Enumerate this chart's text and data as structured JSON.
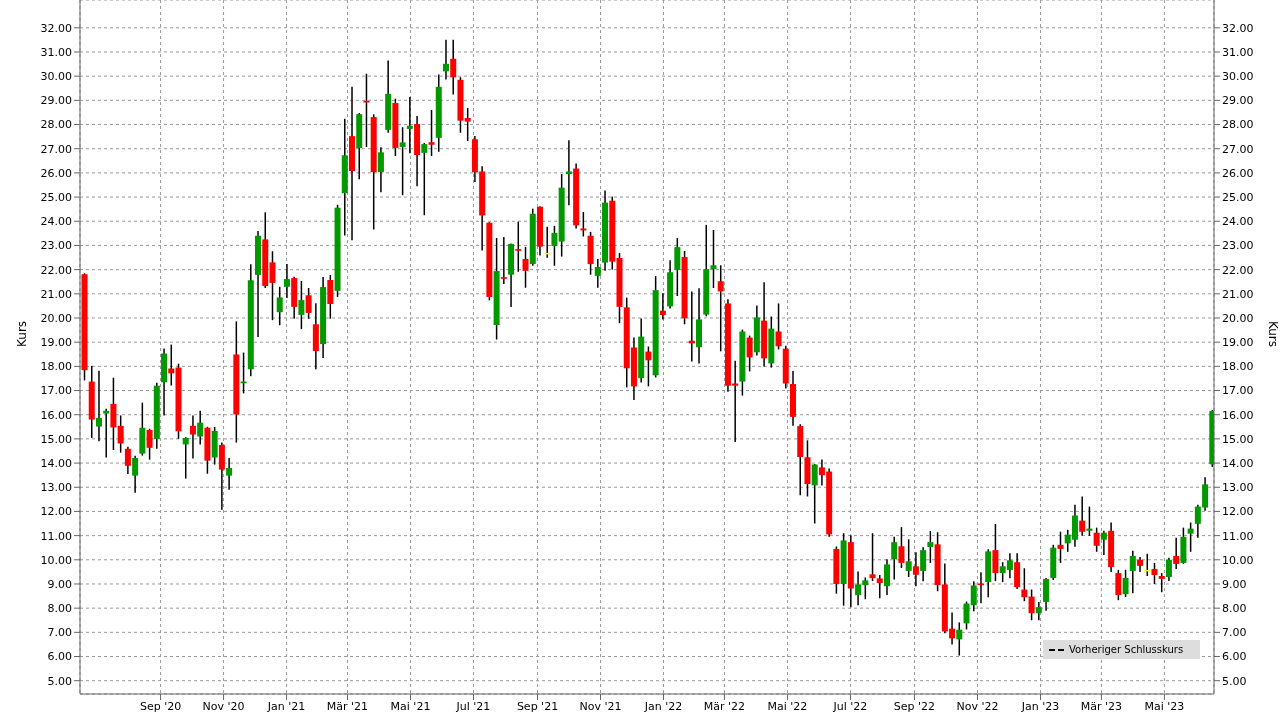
{
  "chart_data": {
    "type": "candlestick",
    "ylabel": "Kurs",
    "y2label": "Kurs",
    "annotations": [
      "Vorheriger Schlusskurs"
    ],
    "grid": true,
    "xlim": [
      "2020-06-15",
      "2023-06-18"
    ],
    "xticks": [
      {
        "value": "2020-09-01",
        "label": "Sep '20"
      },
      {
        "value": "2020-11-01",
        "label": "Nov '20"
      },
      {
        "value": "2021-01-01",
        "label": "Jan '21"
      },
      {
        "value": "2021-03-01",
        "label": "Mär '21"
      },
      {
        "value": "2021-05-01",
        "label": "Mai '21"
      },
      {
        "value": "2021-07-01",
        "label": "Jul '21"
      },
      {
        "value": "2021-09-01",
        "label": "Sep '21"
      },
      {
        "value": "2021-11-01",
        "label": "Nov '21"
      },
      {
        "value": "2022-01-01",
        "label": "Jan '22"
      },
      {
        "value": "2022-03-01",
        "label": "Mär '22"
      },
      {
        "value": "2022-05-01",
        "label": "Mai '22"
      },
      {
        "value": "2022-07-01",
        "label": "Jul '22"
      },
      {
        "value": "2022-09-01",
        "label": "Sep '22"
      },
      {
        "value": "2022-11-01",
        "label": "Nov '22"
      },
      {
        "value": "2023-01-01",
        "label": "Jan '23"
      },
      {
        "value": "2023-03-01",
        "label": "Mär '23"
      },
      {
        "value": "2023-05-01",
        "label": "Mai '23"
      }
    ],
    "ylim": [
      4.45,
      33.15
    ],
    "yticks": [
      {
        "value": 5,
        "label": "5.00"
      },
      {
        "value": 6,
        "label": "6.00"
      },
      {
        "value": 7,
        "label": "7.00"
      },
      {
        "value": 8,
        "label": "8.00"
      },
      {
        "value": 9,
        "label": "9.00"
      },
      {
        "value": 10,
        "label": "10.00"
      },
      {
        "value": 11,
        "label": "11.00"
      },
      {
        "value": 12,
        "label": "12.00"
      },
      {
        "value": 13,
        "label": "13.00"
      },
      {
        "value": 14,
        "label": "14.00"
      },
      {
        "value": 15,
        "label": "15.00"
      },
      {
        "value": 16,
        "label": "16.00"
      },
      {
        "value": 17,
        "label": "17.00"
      },
      {
        "value": 18,
        "label": "18.00"
      },
      {
        "value": 19,
        "label": "19.00"
      },
      {
        "value": 20,
        "label": "20.00"
      },
      {
        "value": 21,
        "label": "21.00"
      },
      {
        "value": 22,
        "label": "22.00"
      },
      {
        "value": 23,
        "label": "23.00"
      },
      {
        "value": 24,
        "label": "24.00"
      },
      {
        "value": 25,
        "label": "25.00"
      },
      {
        "value": 26,
        "label": "26.00"
      },
      {
        "value": 27,
        "label": "27.00"
      },
      {
        "value": 28,
        "label": "28.00"
      },
      {
        "value": 29,
        "label": "29.00"
      },
      {
        "value": 30,
        "label": "30.00"
      },
      {
        "value": 31,
        "label": "31.00"
      },
      {
        "value": 32,
        "label": "32.00"
      }
    ],
    "y2lim": [
      4.45,
      33.15
    ],
    "y2ticks": [
      {
        "value": 5,
        "label": "5.00"
      },
      {
        "value": 6,
        "label": "6.00"
      },
      {
        "value": 7,
        "label": "7.00"
      },
      {
        "value": 8,
        "label": "8.00"
      },
      {
        "value": 9,
        "label": "9.00"
      },
      {
        "value": 10,
        "label": "10.00"
      },
      {
        "value": 11,
        "label": "11.00"
      },
      {
        "value": 12,
        "label": "12.00"
      },
      {
        "value": 13,
        "label": "13.00"
      },
      {
        "value": 14,
        "label": "14.00"
      },
      {
        "value": 15,
        "label": "15.00"
      },
      {
        "value": 16,
        "label": "16.00"
      },
      {
        "value": 17,
        "label": "17.00"
      },
      {
        "value": 18,
        "label": "18.00"
      },
      {
        "value": 19,
        "label": "19.00"
      },
      {
        "value": 20,
        "label": "20.00"
      },
      {
        "value": 21,
        "label": "21.00"
      },
      {
        "value": 22,
        "label": "22.00"
      },
      {
        "value": 23,
        "label": "23.00"
      },
      {
        "value": 24,
        "label": "24.00"
      },
      {
        "value": 25,
        "label": "25.00"
      },
      {
        "value": 26,
        "label": "26.00"
      },
      {
        "value": 27,
        "label": "27.00"
      },
      {
        "value": 28,
        "label": "28.00"
      },
      {
        "value": 29,
        "label": "29.00"
      },
      {
        "value": 30,
        "label": "30.00"
      },
      {
        "value": 31,
        "label": "31.00"
      },
      {
        "value": 32,
        "label": "32.00"
      }
    ],
    "x": [
      "2020-06-19",
      "2020-06-26",
      "2020-07-03",
      "2020-07-10",
      "2020-07-17",
      "2020-07-24",
      "2020-07-31",
      "2020-08-07",
      "2020-08-14",
      "2020-08-21",
      "2020-08-28",
      "2020-09-04",
      "2020-09-11",
      "2020-09-18",
      "2020-09-25",
      "2020-10-02",
      "2020-10-09",
      "2020-10-16",
      "2020-10-23",
      "2020-10-30",
      "2020-11-06",
      "2020-11-13",
      "2020-11-20",
      "2020-11-27",
      "2020-12-04",
      "2020-12-11",
      "2020-12-18",
      "2020-12-25",
      "2021-01-01",
      "2021-01-08",
      "2021-01-15",
      "2021-01-22",
      "2021-01-29",
      "2021-02-05",
      "2021-02-12",
      "2021-02-19",
      "2021-02-26",
      "2021-03-05",
      "2021-03-12",
      "2021-03-19",
      "2021-03-26",
      "2021-04-02",
      "2021-04-09",
      "2021-04-16",
      "2021-04-23",
      "2021-04-30",
      "2021-05-07",
      "2021-05-14",
      "2021-05-21",
      "2021-05-28",
      "2021-06-04",
      "2021-06-11",
      "2021-06-18",
      "2021-06-25",
      "2021-07-02",
      "2021-07-09",
      "2021-07-16",
      "2021-07-23",
      "2021-07-30",
      "2021-08-06",
      "2021-08-13",
      "2021-08-20",
      "2021-08-27",
      "2021-09-03",
      "2021-09-10",
      "2021-09-17",
      "2021-09-24",
      "2021-10-01",
      "2021-10-08",
      "2021-10-15",
      "2021-10-22",
      "2021-10-29",
      "2021-11-05",
      "2021-11-12",
      "2021-11-19",
      "2021-11-26",
      "2021-12-03",
      "2021-12-10",
      "2021-12-17",
      "2021-12-24",
      "2021-12-31",
      "2022-01-07",
      "2022-01-14",
      "2022-01-21",
      "2022-01-28",
      "2022-02-04",
      "2022-02-11",
      "2022-02-18",
      "2022-02-25",
      "2022-03-04",
      "2022-03-11",
      "2022-03-18",
      "2022-03-25",
      "2022-04-01",
      "2022-04-08",
      "2022-04-15",
      "2022-04-22",
      "2022-04-29",
      "2022-05-06",
      "2022-05-13",
      "2022-05-20",
      "2022-05-27",
      "2022-06-03",
      "2022-06-10",
      "2022-06-17",
      "2022-06-24",
      "2022-07-01",
      "2022-07-08",
      "2022-07-15",
      "2022-07-22",
      "2022-07-29",
      "2022-08-05",
      "2022-08-12",
      "2022-08-19",
      "2022-08-26",
      "2022-09-02",
      "2022-09-09",
      "2022-09-16",
      "2022-09-23",
      "2022-09-30",
      "2022-10-07",
      "2022-10-14",
      "2022-10-21",
      "2022-10-28",
      "2022-11-04",
      "2022-11-11",
      "2022-11-18",
      "2022-11-25",
      "2022-12-02",
      "2022-12-09",
      "2022-12-16",
      "2022-12-23",
      "2022-12-30",
      "2023-01-06",
      "2023-01-13",
      "2023-01-20",
      "2023-01-27",
      "2023-02-03",
      "2023-02-10",
      "2023-02-17",
      "2023-02-24",
      "2023-03-03",
      "2023-03-10",
      "2023-03-17",
      "2023-03-24",
      "2023-03-31",
      "2023-04-07",
      "2023-04-14",
      "2023-04-21",
      "2023-04-28",
      "2023-05-05",
      "2023-05-12",
      "2023-05-19",
      "2023-05-26",
      "2023-06-02",
      "2023-06-09",
      "2023-06-16"
    ],
    "ohlc": [
      [
        21.81,
        21.85,
        17.42,
        17.84
      ],
      [
        17.37,
        18.02,
        15.04,
        15.8
      ],
      [
        15.51,
        17.82,
        14.9,
        15.87
      ],
      [
        16.05,
        16.25,
        14.23,
        16.16
      ],
      [
        16.45,
        17.53,
        14.54,
        15.47
      ],
      [
        15.54,
        15.97,
        14.43,
        14.81
      ],
      [
        14.59,
        14.67,
        13.55,
        13.89
      ],
      [
        13.48,
        14.3,
        12.77,
        14.21
      ],
      [
        14.39,
        16.5,
        14.31,
        15.46
      ],
      [
        15.37,
        15.42,
        14.14,
        14.63
      ],
      [
        15.0,
        17.32,
        14.59,
        17.2
      ],
      [
        17.34,
        18.74,
        15.97,
        18.53
      ],
      [
        17.91,
        18.9,
        17.21,
        17.71
      ],
      [
        17.95,
        18.11,
        15.0,
        15.31
      ],
      [
        14.77,
        15.07,
        13.36,
        15.04
      ],
      [
        15.54,
        15.97,
        14.19,
        15.18
      ],
      [
        15.1,
        16.16,
        14.77,
        15.67
      ],
      [
        15.46,
        15.5,
        13.56,
        14.1
      ],
      [
        14.23,
        15.49,
        13.94,
        15.33
      ],
      [
        14.75,
        14.85,
        12.07,
        13.73
      ],
      [
        13.48,
        14.21,
        12.9,
        13.8
      ],
      [
        18.49,
        19.86,
        14.85,
        16.01
      ],
      [
        17.3,
        18.57,
        16.88,
        17.37
      ],
      [
        17.88,
        22.22,
        17.59,
        21.56
      ],
      [
        21.78,
        23.6,
        19.21,
        23.4
      ],
      [
        23.25,
        24.37,
        21.24,
        21.32
      ],
      [
        22.3,
        22.76,
        19.91,
        21.45
      ],
      [
        20.24,
        21.29,
        19.7,
        20.85
      ],
      [
        21.29,
        22.23,
        20.83,
        21.61
      ],
      [
        21.65,
        21.7,
        19.97,
        20.46
      ],
      [
        20.13,
        21.53,
        19.54,
        20.74
      ],
      [
        20.94,
        21.24,
        19.97,
        20.21
      ],
      [
        19.74,
        20.61,
        17.88,
        18.63
      ],
      [
        18.92,
        21.69,
        18.34,
        21.28
      ],
      [
        21.57,
        21.78,
        19.97,
        20.58
      ],
      [
        21.12,
        24.68,
        20.87,
        24.56
      ],
      [
        25.16,
        28.24,
        23.41,
        26.73
      ],
      [
        27.52,
        29.56,
        23.21,
        26.08
      ],
      [
        27.03,
        28.48,
        25.74,
        28.43
      ],
      [
        28.98,
        30.1,
        27.07,
        28.91
      ],
      [
        28.31,
        28.42,
        23.66,
        26.03
      ],
      [
        26.03,
        27.06,
        25.2,
        26.85
      ],
      [
        27.78,
        30.65,
        27.66,
        29.27
      ],
      [
        28.89,
        29.07,
        26.7,
        27.03
      ],
      [
        27.07,
        27.89,
        25.08,
        27.26
      ],
      [
        27.82,
        29.14,
        26.81,
        27.95
      ],
      [
        28.02,
        28.35,
        25.45,
        26.74
      ],
      [
        26.83,
        27.24,
        24.25,
        27.19
      ],
      [
        27.27,
        28.6,
        26.7,
        27.16
      ],
      [
        27.45,
        30.07,
        26.87,
        29.56
      ],
      [
        30.2,
        31.51,
        29.86,
        30.51
      ],
      [
        30.72,
        31.51,
        29.24,
        29.95
      ],
      [
        29.85,
        29.96,
        27.66,
        28.16
      ],
      [
        28.27,
        28.68,
        27.32,
        28.12
      ],
      [
        27.39,
        27.53,
        25.62,
        26.03
      ],
      [
        26.06,
        26.27,
        22.79,
        24.24
      ],
      [
        23.94,
        23.96,
        20.73,
        20.87
      ],
      [
        19.71,
        23.31,
        19.11,
        21.94
      ],
      [
        21.69,
        23.35,
        21.41,
        21.62
      ],
      [
        21.79,
        23.08,
        20.45,
        23.06
      ],
      [
        22.85,
        23.98,
        21.91,
        22.78
      ],
      [
        22.44,
        22.94,
        21.25,
        21.95
      ],
      [
        22.23,
        24.52,
        22.16,
        24.31
      ],
      [
        24.6,
        24.62,
        22.58,
        22.95
      ],
      [
        22.69,
        23.77,
        22.49,
        22.69
      ],
      [
        22.98,
        23.81,
        22.16,
        23.52
      ],
      [
        23.16,
        25.95,
        22.54,
        25.39
      ],
      [
        25.95,
        27.35,
        24.66,
        26.06
      ],
      [
        26.18,
        26.39,
        23.7,
        23.83
      ],
      [
        23.7,
        24.38,
        23.37,
        23.62
      ],
      [
        23.4,
        23.56,
        21.79,
        22.23
      ],
      [
        21.74,
        22.44,
        21.25,
        22.11
      ],
      [
        22.29,
        25.27,
        21.95,
        24.77
      ],
      [
        24.85,
        25.02,
        22.0,
        22.33
      ],
      [
        22.48,
        22.69,
        19.79,
        20.46
      ],
      [
        20.44,
        20.84,
        17.13,
        17.92
      ],
      [
        18.78,
        19.19,
        16.61,
        17.17
      ],
      [
        17.51,
        19.98,
        17.33,
        19.23
      ],
      [
        18.61,
        18.82,
        17.17,
        18.25
      ],
      [
        17.63,
        21.73,
        17.54,
        21.15
      ],
      [
        20.3,
        21.02,
        19.94,
        20.12
      ],
      [
        20.48,
        22.39,
        20.39,
        21.89
      ],
      [
        21.99,
        23.31,
        20.91,
        22.93
      ],
      [
        22.52,
        22.77,
        19.74,
        19.99
      ],
      [
        19.06,
        21.1,
        18.2,
        18.95
      ],
      [
        18.79,
        21.23,
        18.12,
        19.94
      ],
      [
        20.14,
        23.85,
        20.07,
        22.02
      ],
      [
        22.02,
        23.64,
        21.24,
        22.18
      ],
      [
        21.52,
        22.18,
        18.62,
        21.1
      ],
      [
        20.6,
        20.77,
        16.95,
        17.2
      ],
      [
        17.29,
        18.23,
        14.87,
        17.2
      ],
      [
        17.37,
        19.52,
        16.79,
        19.44
      ],
      [
        19.19,
        19.27,
        17.79,
        18.37
      ],
      [
        18.58,
        20.52,
        18.45,
        20.02
      ],
      [
        19.89,
        21.48,
        17.99,
        18.33
      ],
      [
        18.12,
        20.06,
        17.95,
        19.56
      ],
      [
        19.44,
        20.6,
        18.7,
        18.83
      ],
      [
        18.73,
        18.85,
        17.08,
        17.29
      ],
      [
        17.27,
        17.81,
        15.54,
        15.91
      ],
      [
        15.53,
        15.61,
        12.67,
        14.25
      ],
      [
        14.24,
        14.94,
        12.62,
        13.13
      ],
      [
        13.08,
        13.96,
        11.5,
        13.94
      ],
      [
        13.82,
        14.15,
        13.07,
        13.5
      ],
      [
        13.65,
        13.78,
        10.95,
        11.05
      ],
      [
        10.45,
        10.55,
        8.6,
        9.0
      ],
      [
        9.0,
        11.1,
        8.1,
        10.8
      ],
      [
        10.73,
        11.02,
        8.04,
        8.81
      ],
      [
        8.54,
        9.52,
        8.12,
        8.98
      ],
      [
        8.95,
        9.27,
        8.37,
        9.15
      ],
      [
        9.4,
        11.1,
        9.12,
        9.24
      ],
      [
        9.23,
        9.37,
        8.41,
        9.04
      ],
      [
        8.91,
        10.02,
        8.54,
        9.81
      ],
      [
        10.03,
        10.95,
        9.19,
        10.73
      ],
      [
        10.56,
        11.35,
        9.66,
        9.87
      ],
      [
        9.54,
        10.85,
        9.29,
        9.94
      ],
      [
        9.73,
        10.31,
        8.91,
        9.38
      ],
      [
        9.54,
        10.52,
        9.11,
        10.4
      ],
      [
        10.53,
        11.19,
        9.87,
        10.73
      ],
      [
        10.64,
        11.14,
        8.7,
        8.95
      ],
      [
        8.98,
        9.85,
        6.96,
        7.04
      ],
      [
        7.15,
        7.82,
        6.5,
        6.75
      ],
      [
        6.71,
        7.41,
        6.04,
        7.11
      ],
      [
        7.37,
        8.27,
        7.12,
        8.19
      ],
      [
        8.12,
        9.11,
        7.87,
        8.94
      ],
      [
        9.02,
        9.48,
        8.2,
        8.95
      ],
      [
        9.08,
        10.44,
        8.45,
        10.35
      ],
      [
        10.4,
        11.48,
        9.12,
        9.45
      ],
      [
        9.45,
        9.9,
        9.08,
        9.73
      ],
      [
        9.58,
        10.27,
        9.24,
        9.98
      ],
      [
        9.9,
        10.27,
        8.79,
        8.87
      ],
      [
        8.77,
        9.65,
        8.29,
        8.45
      ],
      [
        8.48,
        8.77,
        7.5,
        7.79
      ],
      [
        7.79,
        8.25,
        7.5,
        8.04
      ],
      [
        8.26,
        9.25,
        7.89,
        9.21
      ],
      [
        9.25,
        10.62,
        9.16,
        10.5
      ],
      [
        10.62,
        11.16,
        9.87,
        10.45
      ],
      [
        10.68,
        11.24,
        10.33,
        11.04
      ],
      [
        10.83,
        12.28,
        10.54,
        11.83
      ],
      [
        11.62,
        12.62,
        10.99,
        11.16
      ],
      [
        11.2,
        12.2,
        10.99,
        11.29
      ],
      [
        11.12,
        11.33,
        10.33,
        10.58
      ],
      [
        10.83,
        11.2,
        10.2,
        11.12
      ],
      [
        11.2,
        11.54,
        9.5,
        9.7
      ],
      [
        9.45,
        9.58,
        8.33,
        8.54
      ],
      [
        8.58,
        9.58,
        8.46,
        9.25
      ],
      [
        9.54,
        10.37,
        8.62,
        10.16
      ],
      [
        10.0,
        10.12,
        9.5,
        9.75
      ],
      [
        9.58,
        10.25,
        9.33,
        9.58
      ],
      [
        9.62,
        9.87,
        9.0,
        9.37
      ],
      [
        9.33,
        9.45,
        8.66,
        9.21
      ],
      [
        9.29,
        10.08,
        9.12,
        10.0
      ],
      [
        10.16,
        10.91,
        9.62,
        9.83
      ],
      [
        9.87,
        11.33,
        9.83,
        10.95
      ],
      [
        11.08,
        11.54,
        10.33,
        11.29
      ],
      [
        11.49,
        12.28,
        10.91,
        12.2
      ],
      [
        12.16,
        13.41,
        12.03,
        13.12
      ],
      [
        13.95,
        16.2,
        13.84,
        16.15
      ]
    ],
    "colors": [
      "#ff0000",
      "#ff0000",
      "#009900",
      "#009900",
      "#ff0000",
      "#ff0000",
      "#ff0000",
      "#009900",
      "#009900",
      "#ff0000",
      "#009900",
      "#009900",
      "#ff0000",
      "#ff0000",
      "#009900",
      "#ff0000",
      "#009900",
      "#ff0000",
      "#009900",
      "#ff0000",
      "#009900",
      "#ff0000",
      "#009900",
      "#009900",
      "#009900",
      "#ff0000",
      "#ff0000",
      "#009900",
      "#009900",
      "#ff0000",
      "#009900",
      "#ff0000",
      "#ff0000",
      "#009900",
      "#ff0000",
      "#009900",
      "#009900",
      "#ff0000",
      "#009900",
      "#ff0000",
      "#ff0000",
      "#009900",
      "#009900",
      "#ff0000",
      "#009900",
      "#009900",
      "#ff0000",
      "#009900",
      "#ff0000",
      "#009900",
      "#009900",
      "#ff0000",
      "#ff0000",
      "#ff0000",
      "#ff0000",
      "#ff0000",
      "#ff0000",
      "#009900",
      "#ff0000",
      "#009900",
      "#ff0000",
      "#ff0000",
      "#009900",
      "#ff0000",
      "#ffff00",
      "#009900",
      "#009900",
      "#009900",
      "#ff0000",
      "#ff0000",
      "#ff0000",
      "#009900",
      "#009900",
      "#ff0000",
      "#ff0000",
      "#ff0000",
      "#ff0000",
      "#009900",
      "#ff0000",
      "#009900",
      "#ff0000",
      "#009900",
      "#009900",
      "#ff0000",
      "#ff0000",
      "#009900",
      "#009900",
      "#009900",
      "#ff0000",
      "#ff0000",
      "#ff0000",
      "#009900",
      "#ff0000",
      "#009900",
      "#ff0000",
      "#009900",
      "#ff0000",
      "#ff0000",
      "#ff0000",
      "#ff0000",
      "#ff0000",
      "#009900",
      "#ff0000",
      "#ff0000",
      "#ff0000",
      "#009900",
      "#ff0000",
      "#009900",
      "#009900",
      "#ff0000",
      "#ff0000",
      "#009900",
      "#009900",
      "#ff0000",
      "#009900",
      "#ff0000",
      "#009900",
      "#009900",
      "#ff0000",
      "#ff0000",
      "#ff0000",
      "#009900",
      "#009900",
      "#009900",
      "#ff0000",
      "#009900",
      "#ff0000",
      "#009900",
      "#009900",
      "#ff0000",
      "#ff0000",
      "#ff0000",
      "#009900",
      "#009900",
      "#009900",
      "#ff0000",
      "#009900",
      "#009900",
      "#ff0000",
      "#009900",
      "#ff0000",
      "#009900",
      "#ff0000",
      "#ff0000",
      "#009900",
      "#009900",
      "#ff0000",
      "#ffff00",
      "#ff0000",
      "#ff0000",
      "#009900",
      "#ff0000",
      "#009900",
      "#009900",
      "#009900",
      "#009900",
      "#009900"
    ]
  }
}
